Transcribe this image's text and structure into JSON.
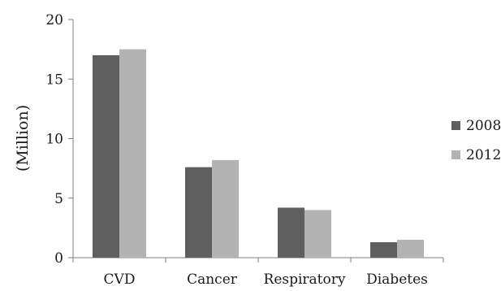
{
  "chart_data": {
    "type": "bar",
    "title": "",
    "xlabel": "",
    "ylabel": "(Million)",
    "categories": [
      "CVD",
      "Cancer",
      "Respiratory",
      "Diabetes"
    ],
    "series": [
      {
        "name": "2008",
        "color": "#5f5f5f",
        "values": [
          17.0,
          7.6,
          4.2,
          1.3
        ]
      },
      {
        "name": "2012",
        "color": "#b3b3b3",
        "values": [
          17.5,
          8.2,
          4.0,
          1.5
        ]
      }
    ],
    "ylim": [
      0,
      20
    ],
    "yticks": [
      0,
      5,
      10,
      15,
      20
    ],
    "grid": false,
    "legend_position": "right"
  }
}
